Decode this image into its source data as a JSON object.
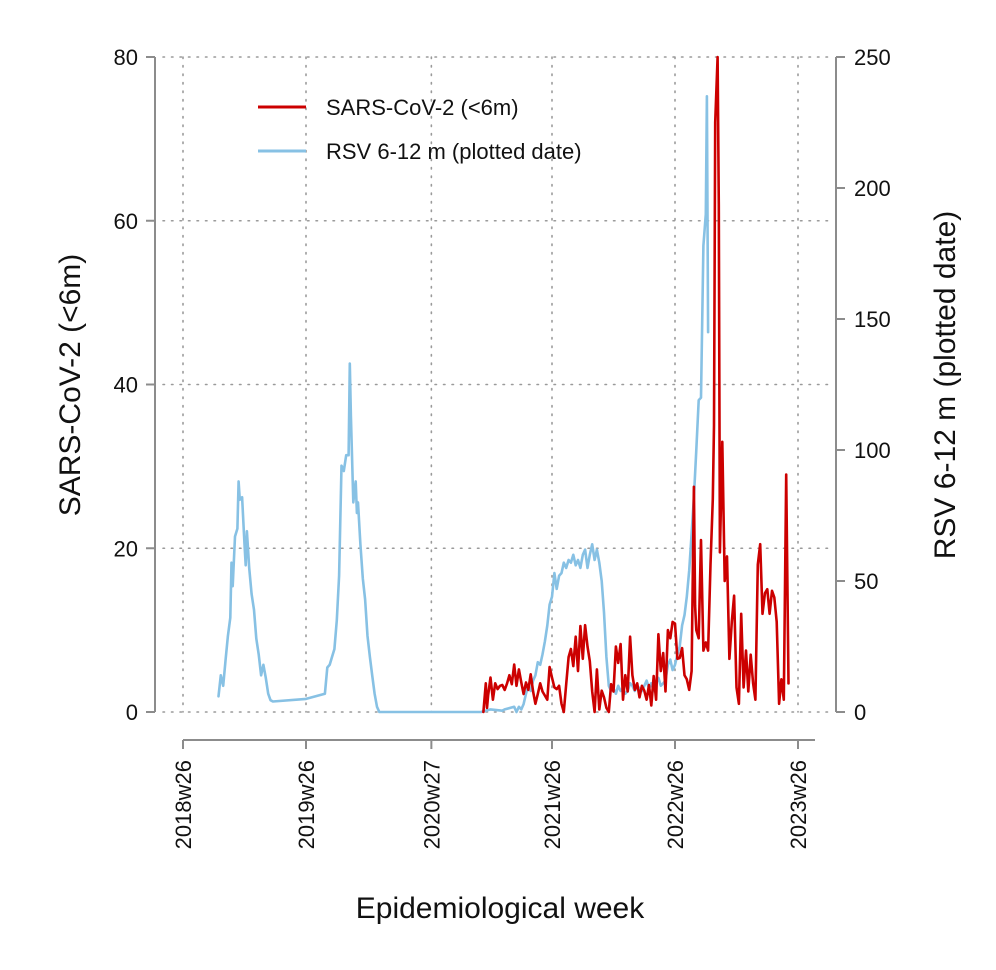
{
  "chart_data": {
    "type": "line",
    "xlabel": "Epidemiological week",
    "ylabel_left": "SARS-CoV-2 (<6m)",
    "ylabel_right": "RSV 6-12 m (plotted date)",
    "x_unit": "weeks since 2018w26",
    "xlim": [
      0,
      256
    ],
    "ylim_left": [
      0,
      80
    ],
    "ylim_right": [
      0,
      250
    ],
    "x_ticks": [
      {
        "label": "2018w26",
        "value": 0
      },
      {
        "label": "2019w26",
        "value": 52
      },
      {
        "label": "2020w27",
        "value": 105
      },
      {
        "label": "2021w26",
        "value": 156
      },
      {
        "label": "2022w26",
        "value": 208
      },
      {
        "label": "2023w26",
        "value": 260
      }
    ],
    "y_ticks_left": [
      0,
      20,
      40,
      60,
      80
    ],
    "y_ticks_right": [
      0,
      50,
      100,
      150,
      200,
      250
    ],
    "grid": true,
    "legend_position": "top-left",
    "series": [
      {
        "name": "SARS-CoV-2 (<6m)",
        "axis": "left",
        "color": "#cc0000",
        "points": [
          [
            127,
            0
          ],
          [
            128,
            3.5
          ],
          [
            128.5,
            0.5
          ],
          [
            129,
            2
          ],
          [
            130,
            4.2
          ],
          [
            131,
            1.5
          ],
          [
            132,
            3.5
          ],
          [
            133,
            2.8
          ],
          [
            134,
            3.2
          ],
          [
            135,
            3.3
          ],
          [
            136,
            2.7
          ],
          [
            137,
            3.5
          ],
          [
            138,
            4.5
          ],
          [
            139,
            3.4
          ],
          [
            140,
            5.8
          ],
          [
            141,
            3.2
          ],
          [
            142,
            5.2
          ],
          [
            143,
            3.6
          ],
          [
            144,
            2.2
          ],
          [
            145,
            3.6
          ],
          [
            146,
            2.7
          ],
          [
            147,
            4.6
          ],
          [
            148,
            2.5
          ],
          [
            149,
            1
          ],
          [
            150,
            2.2
          ],
          [
            151,
            3.5
          ],
          [
            152,
            2.5
          ],
          [
            153,
            2
          ],
          [
            154,
            1.5
          ],
          [
            155,
            5.5
          ],
          [
            156,
            4.2
          ],
          [
            157,
            3
          ],
          [
            158,
            2.8
          ],
          [
            159,
            3.2
          ],
          [
            160,
            1
          ],
          [
            161,
            0
          ],
          [
            162,
            3.4
          ],
          [
            163,
            6.7
          ],
          [
            164,
            7.7
          ],
          [
            165,
            5.6
          ],
          [
            166,
            9.2
          ],
          [
            167,
            5
          ],
          [
            168,
            10.5
          ],
          [
            169,
            6.5
          ],
          [
            170,
            10.6
          ],
          [
            171,
            8
          ],
          [
            172,
            6.2
          ],
          [
            173,
            2.5
          ],
          [
            174,
            0
          ],
          [
            175,
            5.2
          ],
          [
            176,
            0.3
          ],
          [
            177,
            2.6
          ],
          [
            178,
            1.8
          ],
          [
            179,
            0.5
          ],
          [
            180,
            0
          ],
          [
            181,
            3.4
          ],
          [
            182,
            2.5
          ],
          [
            183,
            8
          ],
          [
            184,
            6
          ],
          [
            185,
            8.3
          ],
          [
            186,
            1.5
          ],
          [
            187,
            4.5
          ],
          [
            188,
            2.5
          ],
          [
            189,
            9.2
          ],
          [
            190,
            4.5
          ],
          [
            191,
            2.7
          ],
          [
            192,
            3.5
          ],
          [
            193,
            1.8
          ],
          [
            194,
            3.2
          ],
          [
            195,
            2.6
          ],
          [
            196,
            1.5
          ],
          [
            197,
            3.3
          ],
          [
            198,
            0.8
          ],
          [
            199,
            4.4
          ],
          [
            200,
            1.5
          ],
          [
            201,
            9.5
          ],
          [
            202,
            5
          ],
          [
            203,
            7.2
          ],
          [
            204,
            2.5
          ],
          [
            205,
            10
          ],
          [
            206,
            9
          ],
          [
            207,
            11
          ],
          [
            208,
            10.8
          ],
          [
            209,
            6.5
          ],
          [
            210,
            6.6
          ],
          [
            211,
            7.8
          ],
          [
            212,
            4.5
          ],
          [
            213,
            4
          ],
          [
            214,
            2.7
          ],
          [
            215,
            5
          ],
          [
            216,
            27.5
          ],
          [
            216.5,
            13
          ],
          [
            217,
            10
          ],
          [
            218,
            9
          ],
          [
            219,
            21
          ],
          [
            220,
            7.5
          ],
          [
            221,
            8.5
          ],
          [
            222,
            7.5
          ],
          [
            223,
            18
          ],
          [
            224,
            26
          ],
          [
            224.5,
            35
          ],
          [
            225,
            72
          ],
          [
            226,
            80
          ],
          [
            226.5,
            62
          ],
          [
            227,
            19.5
          ],
          [
            228,
            33
          ],
          [
            229,
            16
          ],
          [
            230,
            19
          ],
          [
            231,
            6.5
          ],
          [
            232,
            11
          ],
          [
            233,
            14.2
          ],
          [
            234,
            3
          ],
          [
            235,
            1
          ],
          [
            236,
            12
          ],
          [
            237,
            3
          ],
          [
            238,
            7.5
          ],
          [
            239,
            2.5
          ],
          [
            240,
            7
          ],
          [
            241,
            3.5
          ],
          [
            242,
            1.5
          ],
          [
            243,
            18
          ],
          [
            244,
            20.5
          ],
          [
            245,
            12
          ],
          [
            246,
            14.5
          ],
          [
            247,
            15
          ],
          [
            248,
            12
          ],
          [
            249,
            14.8
          ],
          [
            250,
            14
          ],
          [
            251,
            11
          ],
          [
            252,
            1
          ],
          [
            253,
            4
          ],
          [
            254,
            1.5
          ],
          [
            255,
            29
          ],
          [
            256,
            3.5
          ]
        ]
      },
      {
        "name": "RSV 6-12 m (plotted date)",
        "axis": "right",
        "color": "#87c1e4",
        "points": [
          [
            15,
            6
          ],
          [
            16,
            14
          ],
          [
            17,
            10
          ],
          [
            18,
            20
          ],
          [
            19,
            29
          ],
          [
            20,
            36
          ],
          [
            20.5,
            57
          ],
          [
            21,
            48
          ],
          [
            22,
            67
          ],
          [
            23,
            70
          ],
          [
            23.5,
            88
          ],
          [
            24,
            81
          ],
          [
            25,
            82
          ],
          [
            26,
            64
          ],
          [
            26.5,
            56
          ],
          [
            27,
            69
          ],
          [
            28,
            55
          ],
          [
            29,
            45
          ],
          [
            30,
            39
          ],
          [
            31,
            28
          ],
          [
            32,
            22
          ],
          [
            33,
            14
          ],
          [
            34,
            18
          ],
          [
            35,
            13
          ],
          [
            36,
            7
          ],
          [
            37,
            4.5
          ],
          [
            38,
            4
          ],
          [
            52,
            5
          ],
          [
            60,
            7
          ],
          [
            61,
            17
          ],
          [
            62,
            18
          ],
          [
            63,
            21
          ],
          [
            64,
            24
          ],
          [
            65,
            35
          ],
          [
            66,
            52
          ],
          [
            67,
            94
          ],
          [
            68,
            92
          ],
          [
            69,
            98
          ],
          [
            70,
            98
          ],
          [
            70.5,
            133
          ],
          [
            71,
            113
          ],
          [
            72,
            80
          ],
          [
            73,
            88
          ],
          [
            73.5,
            76
          ],
          [
            74,
            80
          ],
          [
            75,
            64
          ],
          [
            76,
            51
          ],
          [
            77,
            43
          ],
          [
            78,
            29
          ],
          [
            79,
            21
          ],
          [
            80,
            14
          ],
          [
            81,
            7
          ],
          [
            82,
            2
          ],
          [
            83,
            0
          ],
          [
            126,
            0
          ],
          [
            130,
            1
          ],
          [
            135,
            0.5
          ],
          [
            136,
            1
          ],
          [
            140,
            2
          ],
          [
            141,
            0
          ],
          [
            142,
            2
          ],
          [
            143,
            1
          ],
          [
            144,
            3
          ],
          [
            145,
            7
          ],
          [
            146,
            10
          ],
          [
            147,
            8
          ],
          [
            148,
            12
          ],
          [
            149,
            14
          ],
          [
            150,
            19
          ],
          [
            151,
            18
          ],
          [
            152,
            22
          ],
          [
            153,
            27
          ],
          [
            154,
            33
          ],
          [
            155,
            41
          ],
          [
            156,
            44
          ],
          [
            157,
            53
          ],
          [
            158,
            47
          ],
          [
            159,
            52
          ],
          [
            160,
            53
          ],
          [
            161,
            57
          ],
          [
            162,
            55
          ],
          [
            163,
            58
          ],
          [
            164,
            57
          ],
          [
            165,
            60
          ],
          [
            166,
            56
          ],
          [
            167,
            58
          ],
          [
            168,
            55
          ],
          [
            169,
            60
          ],
          [
            170,
            62
          ],
          [
            171,
            55
          ],
          [
            172,
            60
          ],
          [
            173,
            64
          ],
          [
            174,
            58
          ],
          [
            175,
            62
          ],
          [
            176,
            57
          ],
          [
            177,
            50
          ],
          [
            178,
            38
          ],
          [
            179,
            21
          ],
          [
            180,
            10
          ],
          [
            181,
            8
          ],
          [
            182,
            9
          ],
          [
            183,
            7
          ],
          [
            184,
            10
          ],
          [
            185,
            8
          ],
          [
            186,
            9
          ],
          [
            187,
            7
          ],
          [
            188,
            8
          ],
          [
            189,
            11
          ],
          [
            190,
            10
          ],
          [
            191,
            8
          ],
          [
            192,
            10
          ],
          [
            193,
            9
          ],
          [
            194,
            8
          ],
          [
            195,
            10
          ],
          [
            196,
            12
          ],
          [
            197,
            9
          ],
          [
            198,
            11
          ],
          [
            199,
            8
          ],
          [
            200,
            11
          ],
          [
            201,
            13
          ],
          [
            202,
            10
          ],
          [
            203,
            11
          ],
          [
            204,
            12
          ],
          [
            205,
            18
          ],
          [
            206,
            20
          ],
          [
            207,
            16
          ],
          [
            208,
            18
          ],
          [
            209,
            22
          ],
          [
            210,
            25
          ],
          [
            211,
            33
          ],
          [
            212,
            37
          ],
          [
            213,
            44
          ],
          [
            214,
            54
          ],
          [
            215,
            68
          ],
          [
            216,
            82
          ],
          [
            217,
            100
          ],
          [
            218,
            119
          ],
          [
            219,
            120
          ],
          [
            220,
            178
          ],
          [
            221,
            190
          ],
          [
            221.5,
            235
          ],
          [
            222,
            145
          ]
        ]
      }
    ]
  }
}
